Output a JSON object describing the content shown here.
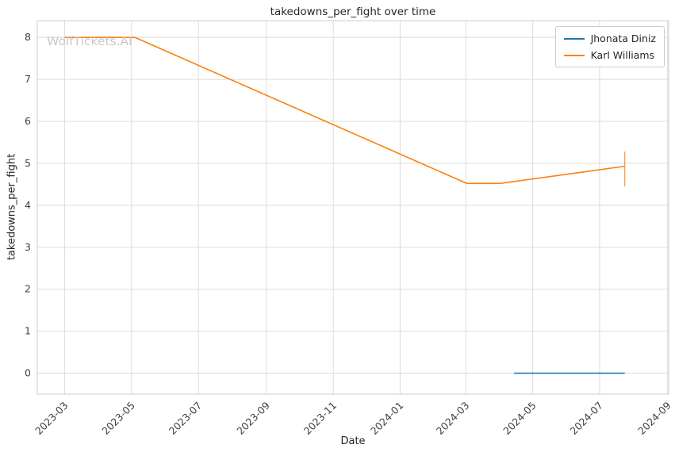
{
  "watermark": "WolfTickets.AI",
  "chart_data": {
    "type": "line",
    "title": "takedowns_per_fight over time",
    "xlabel": "Date",
    "ylabel": "takedowns_per_fight",
    "x_ticks": [
      "2023-03",
      "2023-05",
      "2023-07",
      "2023-09",
      "2023-11",
      "2024-01",
      "2024-03",
      "2024-05",
      "2024-07",
      "2024-09"
    ],
    "y_ticks": [
      0,
      1,
      2,
      3,
      4,
      5,
      6,
      7,
      8
    ],
    "xlim": [
      "2023-02-04",
      "2024-09-02"
    ],
    "ylim": [
      -0.5,
      8.4
    ],
    "grid": true,
    "legend_position": "upper right",
    "colors": {
      "grid": "#dcdcdc",
      "spine": "#cccccc",
      "tick_text": "#404040",
      "title_text": "#262626",
      "watermark": "#c8c8c8",
      "background": "#ffffff",
      "series_blue": "#1f77b4",
      "series_orange": "#ff7f0e"
    },
    "series": [
      {
        "name": "Jhonata Diniz",
        "color": "#1f77b4",
        "points": [
          {
            "x": "2024-04-14",
            "y": 0.0
          },
          {
            "x": "2024-07-24",
            "y": 0.0
          }
        ]
      },
      {
        "name": "Karl Williams",
        "color": "#ff7f0e",
        "points": [
          {
            "x": "2023-03-01",
            "y": 8.0
          },
          {
            "x": "2023-05-04",
            "y": 8.0
          },
          {
            "x": "2024-03-02",
            "y": 4.52
          },
          {
            "x": "2024-04-01",
            "y": 4.52
          },
          {
            "x": "2024-07-24",
            "y": 4.93
          }
        ],
        "error_bar": {
          "x": "2024-07-24",
          "low": 4.45,
          "high": 5.28
        }
      }
    ]
  }
}
